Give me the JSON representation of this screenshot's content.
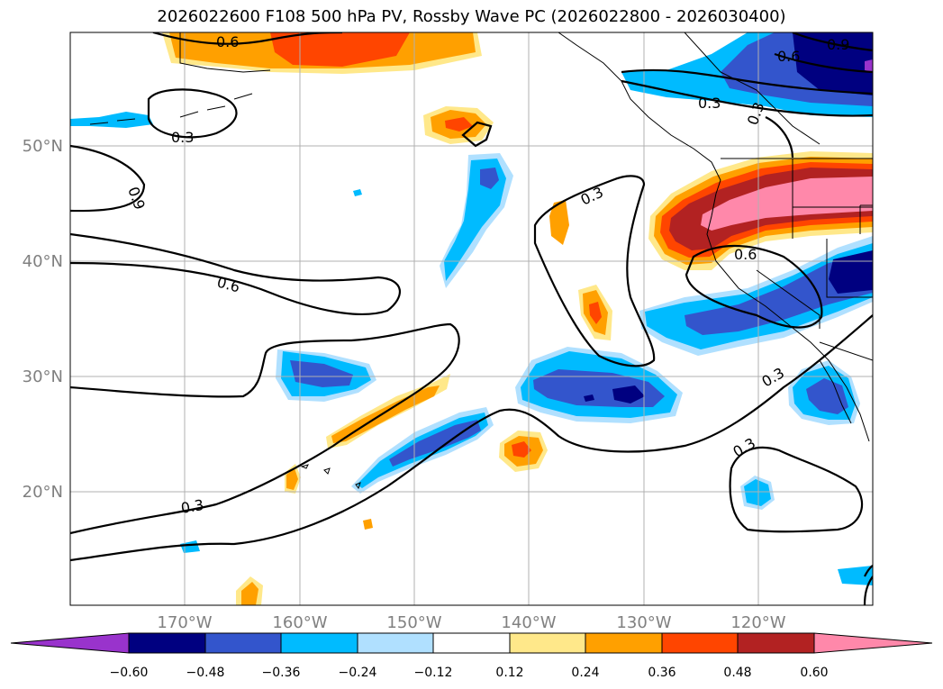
{
  "title": "2026022600 F108 500 hPa PV, Rossby Wave PC (2026022800 - 2026030400)",
  "axes": {
    "lat_labels": [
      "50°N",
      "40°N",
      "30°N",
      "20°N"
    ],
    "lon_labels": [
      "170°W",
      "160°W",
      "150°W",
      "140°W",
      "130°W",
      "120°W"
    ]
  },
  "contour_labels": [
    "0.6",
    "0.6",
    "0.3",
    "0.9",
    "0.6",
    "0.3",
    "0.6",
    "0.3",
    "0.3",
    "0.3",
    "0.3",
    "0.9",
    "0.3",
    "0.6"
  ],
  "colorbar": {
    "ticks": [
      "−0.60",
      "−0.48",
      "−0.36",
      "−0.24",
      "−0.12",
      "0.12",
      "0.24",
      "0.36",
      "0.48",
      "0.60"
    ],
    "colors": [
      "#9933cc",
      "#000080",
      "#3355cc",
      "#00bbff",
      "#b0e0ff",
      "#ffffff",
      "#ffe88a",
      "#ffa000",
      "#ff4500",
      "#b22222",
      "#ff88aa"
    ]
  },
  "colors": {
    "pos_light": "#ffe88a",
    "pos_orange": "#ffa000",
    "pos_red": "#ff4500",
    "pos_darkred": "#b22222",
    "pos_pink": "#ff88aa",
    "neg_light": "#b0e0ff",
    "neg_cyan": "#00bbff",
    "neg_blue": "#3355cc",
    "neg_navy": "#000080",
    "neg_purple": "#9933cc",
    "grid": "#b0b0b0"
  }
}
